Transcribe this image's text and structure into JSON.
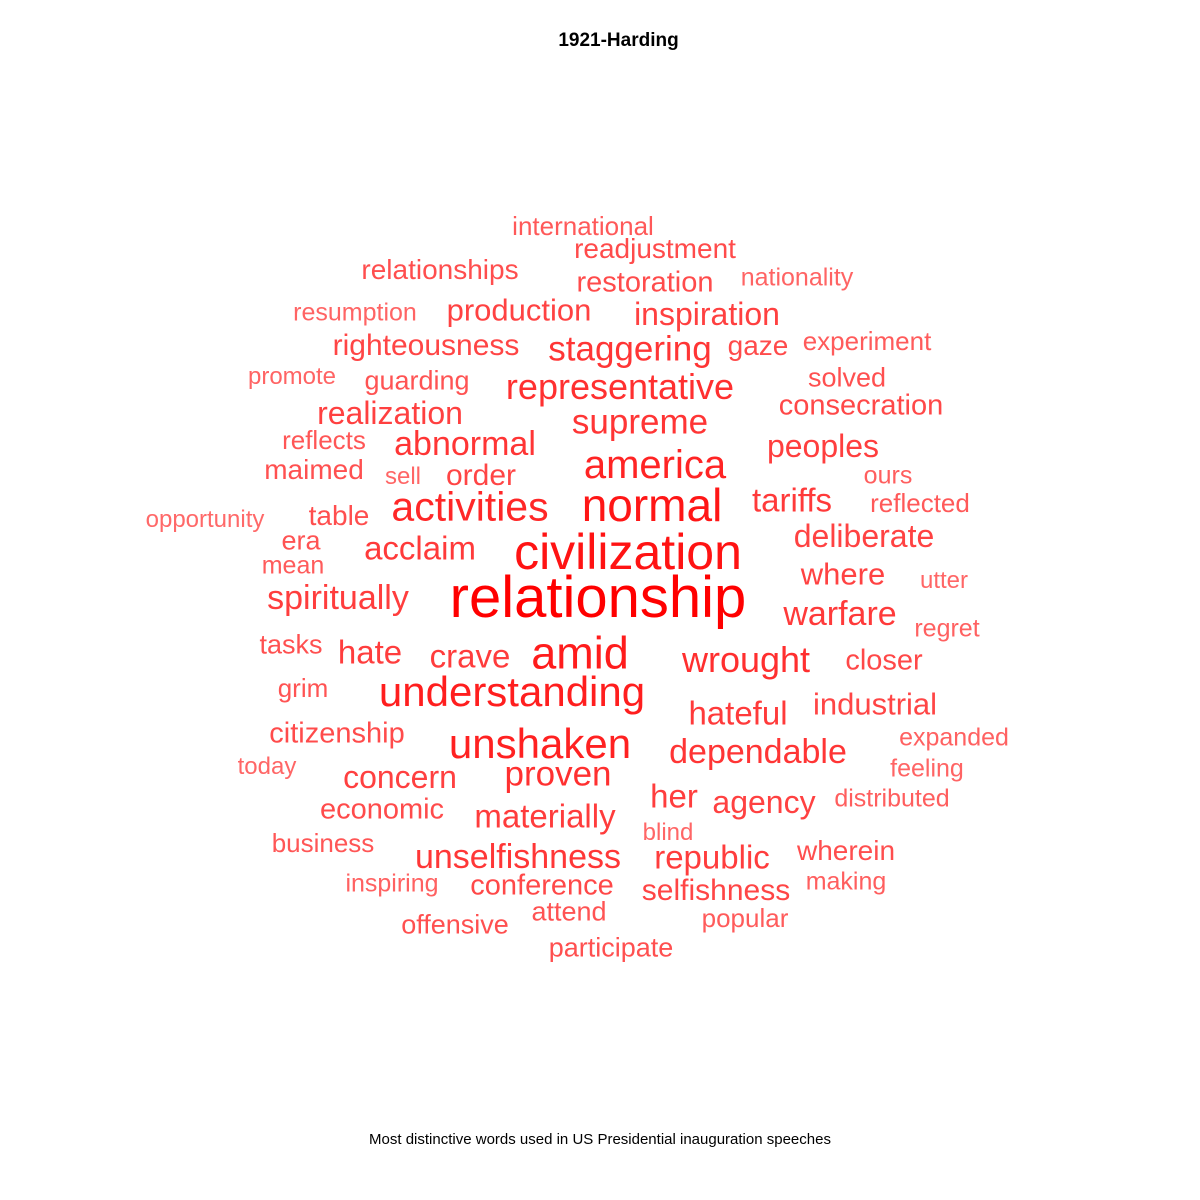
{
  "chart_data": {
    "type": "wordcloud",
    "title": "1921-Harding",
    "caption": "Most distinctive words used in US Presidential inauguration speeches",
    "color_scale": {
      "high": "#ff0000",
      "low": "#ffd5d5"
    },
    "words": [
      {
        "text": "relationship",
        "weight": 1.0
      },
      {
        "text": "civilization",
        "weight": 0.86
      },
      {
        "text": "normal",
        "weight": 0.84
      },
      {
        "text": "amid",
        "weight": 0.8
      },
      {
        "text": "understanding",
        "weight": 0.78
      },
      {
        "text": "unshaken",
        "weight": 0.76
      },
      {
        "text": "america",
        "weight": 0.74
      },
      {
        "text": "activities",
        "weight": 0.72
      },
      {
        "text": "wrought",
        "weight": 0.66
      },
      {
        "text": "representative",
        "weight": 0.65
      },
      {
        "text": "proven",
        "weight": 0.65
      },
      {
        "text": "supreme",
        "weight": 0.62
      },
      {
        "text": "staggering",
        "weight": 0.62
      },
      {
        "text": "abnormal",
        "weight": 0.62
      },
      {
        "text": "dependable",
        "weight": 0.62
      },
      {
        "text": "unselfishness",
        "weight": 0.6
      },
      {
        "text": "acclaim",
        "weight": 0.58
      },
      {
        "text": "hateful",
        "weight": 0.58
      },
      {
        "text": "warfare",
        "weight": 0.58
      },
      {
        "text": "tariffs",
        "weight": 0.58
      },
      {
        "text": "materially",
        "weight": 0.57
      },
      {
        "text": "crave",
        "weight": 0.57
      },
      {
        "text": "hate",
        "weight": 0.56
      },
      {
        "text": "spiritually",
        "weight": 0.56
      },
      {
        "text": "her",
        "weight": 0.56
      },
      {
        "text": "republic",
        "weight": 0.56
      },
      {
        "text": "peoples",
        "weight": 0.55
      },
      {
        "text": "inspiration",
        "weight": 0.54
      },
      {
        "text": "realization",
        "weight": 0.54
      },
      {
        "text": "concern",
        "weight": 0.54
      },
      {
        "text": "agency",
        "weight": 0.53
      },
      {
        "text": "deliberate",
        "weight": 0.52
      },
      {
        "text": "where",
        "weight": 0.52
      },
      {
        "text": "production",
        "weight": 0.52
      },
      {
        "text": "industrial",
        "weight": 0.5
      },
      {
        "text": "righteousness",
        "weight": 0.5
      },
      {
        "text": "order",
        "weight": 0.5
      },
      {
        "text": "selfishness",
        "weight": 0.5
      },
      {
        "text": "conference",
        "weight": 0.48
      },
      {
        "text": "consecration",
        "weight": 0.48
      },
      {
        "text": "closer",
        "weight": 0.48
      },
      {
        "text": "citizenship",
        "weight": 0.46
      },
      {
        "text": "economic",
        "weight": 0.46
      },
      {
        "text": "restoration",
        "weight": 0.46
      },
      {
        "text": "readjustment",
        "weight": 0.46
      },
      {
        "text": "gaze",
        "weight": 0.46
      },
      {
        "text": "wherein",
        "weight": 0.44
      },
      {
        "text": "relationships",
        "weight": 0.44
      },
      {
        "text": "table",
        "weight": 0.44
      },
      {
        "text": "maimed",
        "weight": 0.42
      },
      {
        "text": "solved",
        "weight": 0.42
      },
      {
        "text": "tasks",
        "weight": 0.42
      },
      {
        "text": "offensive",
        "weight": 0.42
      },
      {
        "text": "participate",
        "weight": 0.42
      },
      {
        "text": "attend",
        "weight": 0.4
      },
      {
        "text": "guarding",
        "weight": 0.4
      },
      {
        "text": "era",
        "weight": 0.4
      },
      {
        "text": "grim",
        "weight": 0.4
      },
      {
        "text": "business",
        "weight": 0.38
      },
      {
        "text": "reflects",
        "weight": 0.38
      },
      {
        "text": "reflected",
        "weight": 0.36
      },
      {
        "text": "international",
        "weight": 0.36
      },
      {
        "text": "popular",
        "weight": 0.34
      },
      {
        "text": "experiment",
        "weight": 0.34
      },
      {
        "text": "mean",
        "weight": 0.34
      },
      {
        "text": "making",
        "weight": 0.32
      },
      {
        "text": "distributed",
        "weight": 0.32
      },
      {
        "text": "ours",
        "weight": 0.32
      },
      {
        "text": "inspiring",
        "weight": 0.3
      },
      {
        "text": "regret",
        "weight": 0.3
      },
      {
        "text": "expanded",
        "weight": 0.3
      },
      {
        "text": "resumption",
        "weight": 0.28
      },
      {
        "text": "nationality",
        "weight": 0.28
      },
      {
        "text": "feeling",
        "weight": 0.28
      },
      {
        "text": "promote",
        "weight": 0.28
      },
      {
        "text": "sell",
        "weight": 0.26
      },
      {
        "text": "blind",
        "weight": 0.26
      },
      {
        "text": "utter",
        "weight": 0.26
      },
      {
        "text": "today",
        "weight": 0.26
      },
      {
        "text": "opportunity",
        "weight": 0.24
      }
    ]
  }
}
